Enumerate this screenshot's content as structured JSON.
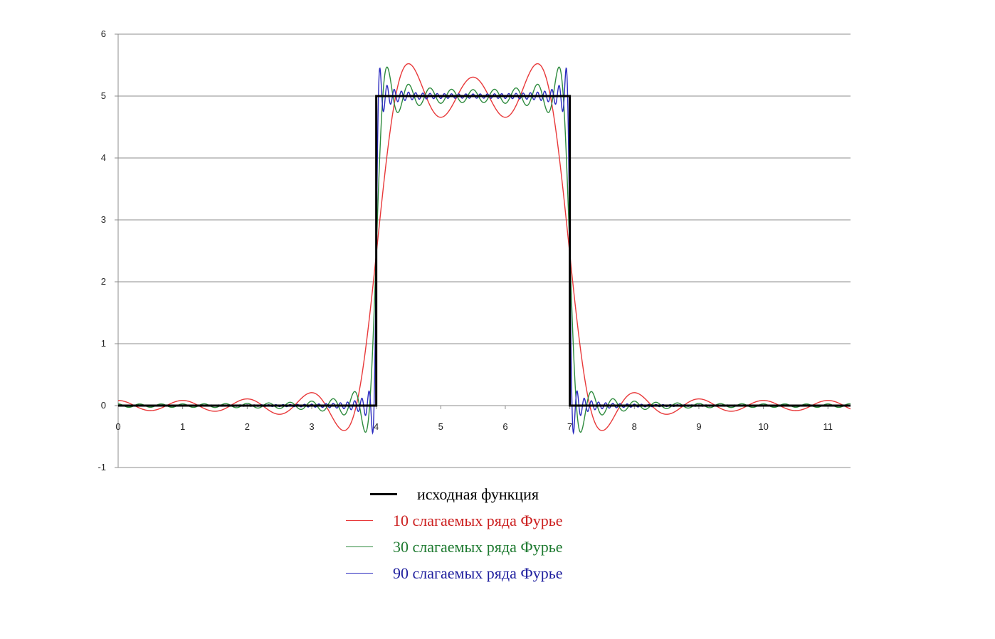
{
  "chart_data": {
    "type": "line",
    "title": "",
    "xlabel": "",
    "ylabel": "",
    "xlim": [
      0,
      11.35
    ],
    "ylim": [
      -1,
      6
    ],
    "x_ticks": [
      0,
      1,
      2,
      3,
      4,
      5,
      6,
      7,
      8,
      9,
      10,
      11
    ],
    "y_ticks": [
      6,
      5,
      4,
      3,
      2,
      1,
      0,
      -1
    ],
    "grid": "horizontal",
    "legend_position": "bottom",
    "function": {
      "description": "rectangular pulse",
      "period": 10,
      "pulse_start": 4,
      "pulse_end": 7,
      "amplitude": 5
    },
    "series": [
      {
        "name": "исходная функция",
        "color": "#000000",
        "terms": 0,
        "style": "thick"
      },
      {
        "name": "10 слагаемых ряда Фурье",
        "color": "#e8393a",
        "terms": 10
      },
      {
        "name": "30 слагаемых ряда Фурье",
        "color": "#2e8b3e",
        "terms": 30
      },
      {
        "name": "90 слагаемых ряда Фурье",
        "color": "#2b2bbf",
        "terms": 90
      }
    ]
  },
  "legend": {
    "items": [
      {
        "label": "исходная функция",
        "color": "#000000",
        "text_color": "#000000"
      },
      {
        "label": "10 слагаемых ряда Фурье",
        "color": "#e8393a",
        "text_color": "#cc2020"
      },
      {
        "label": "30 слагаемых ряда Фурье",
        "color": "#2e8b3e",
        "text_color": "#1e7a30"
      },
      {
        "label": "90 слагаемых ряда Фурье",
        "color": "#2b2bbf",
        "text_color": "#1f1f9e"
      }
    ]
  }
}
